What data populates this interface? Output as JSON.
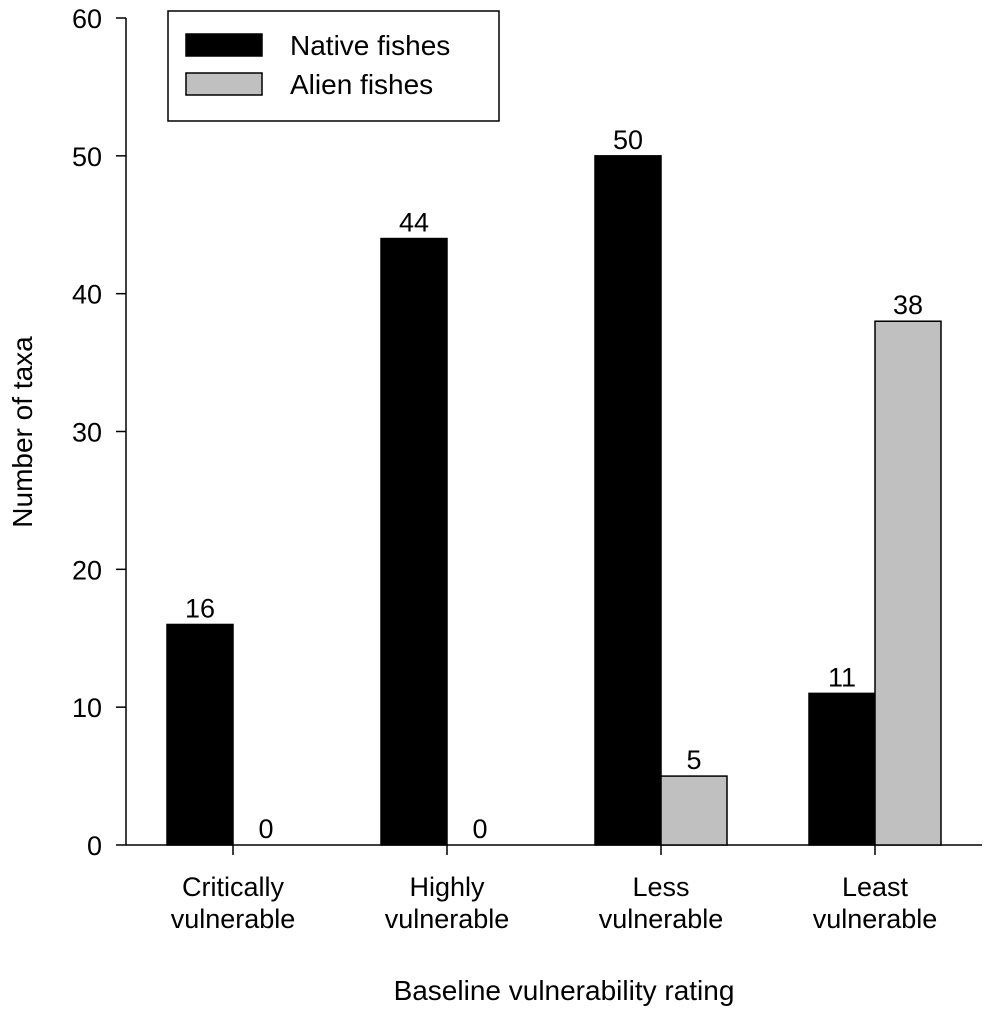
{
  "chart_data": {
    "type": "bar",
    "categories": [
      [
        "Critically",
        "vulnerable"
      ],
      [
        "Highly",
        "vulnerable"
      ],
      [
        "Less",
        "vulnerable"
      ],
      [
        "Least",
        "vulnerable"
      ]
    ],
    "series": [
      {
        "name": "Native fishes",
        "color": "#000000",
        "values": [
          16,
          44,
          50,
          11
        ]
      },
      {
        "name": "Alien fishes",
        "color": "#c0c0c0",
        "values": [
          0,
          0,
          5,
          38
        ]
      }
    ],
    "data_labels": [
      [
        "16",
        "44",
        "50",
        "11"
      ],
      [
        "0",
        "0",
        "5",
        "38"
      ]
    ],
    "title": "",
    "xlabel": "Baseline vulnerability rating",
    "ylabel": "Number of taxa",
    "ylim": [
      0,
      60
    ],
    "yticks": [
      "0",
      "10",
      "20",
      "30",
      "40",
      "50",
      "60"
    ],
    "grid": false,
    "legend_position": "top-left"
  }
}
